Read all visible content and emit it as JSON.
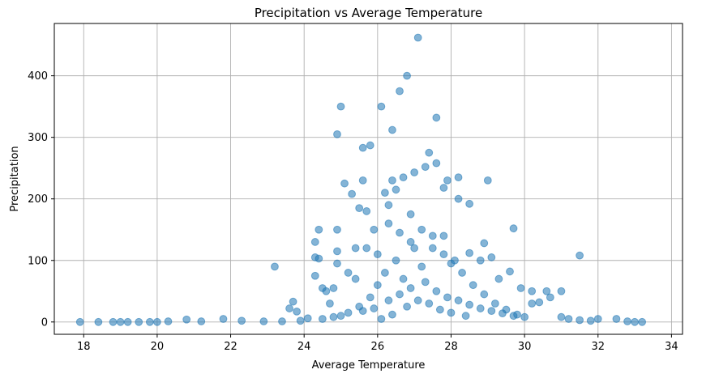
{
  "chart_data": {
    "type": "scatter",
    "title": "Precipitation vs Average Temperature",
    "xlabel": "Average Temperature",
    "ylabel": "Precipitation",
    "xlim": [
      17.2,
      34.3
    ],
    "ylim": [
      -20,
      485
    ],
    "xticks": [
      18,
      20,
      22,
      24,
      26,
      28,
      30,
      32,
      34
    ],
    "yticks": [
      0,
      100,
      200,
      300,
      400
    ],
    "grid": true,
    "marker_color": "#1f77b4",
    "marker_alpha": 0.55,
    "series": [
      {
        "points": [
          [
            17.9,
            0
          ],
          [
            18.4,
            0
          ],
          [
            18.8,
            0
          ],
          [
            19.0,
            0
          ],
          [
            19.2,
            0
          ],
          [
            19.5,
            0
          ],
          [
            19.8,
            0
          ],
          [
            20.0,
            0
          ],
          [
            20.3,
            1
          ],
          [
            20.8,
            4
          ],
          [
            21.2,
            1
          ],
          [
            21.8,
            5
          ],
          [
            22.3,
            2
          ],
          [
            22.9,
            1
          ],
          [
            23.4,
            1
          ],
          [
            23.9,
            2
          ],
          [
            23.2,
            90
          ],
          [
            23.6,
            22
          ],
          [
            23.7,
            33
          ],
          [
            23.8,
            17
          ],
          [
            24.1,
            6
          ],
          [
            24.3,
            75
          ],
          [
            24.3,
            105
          ],
          [
            24.3,
            130
          ],
          [
            24.4,
            103
          ],
          [
            24.4,
            150
          ],
          [
            24.5,
            55
          ],
          [
            24.6,
            50
          ],
          [
            24.7,
            30
          ],
          [
            24.8,
            55
          ],
          [
            24.9,
            305
          ],
          [
            24.9,
            150
          ],
          [
            24.9,
            115
          ],
          [
            24.9,
            95
          ],
          [
            25.0,
            350
          ],
          [
            25.1,
            225
          ],
          [
            25.2,
            80
          ],
          [
            25.3,
            208
          ],
          [
            25.4,
            120
          ],
          [
            25.5,
            185
          ],
          [
            25.6,
            230
          ],
          [
            25.6,
            283
          ],
          [
            25.7,
            180
          ],
          [
            25.8,
            287
          ],
          [
            25.9,
            150
          ],
          [
            26.1,
            350
          ],
          [
            26.2,
            210
          ],
          [
            26.3,
            190
          ],
          [
            26.4,
            312
          ],
          [
            26.4,
            230
          ],
          [
            26.5,
            215
          ],
          [
            26.6,
            375
          ],
          [
            26.7,
            235
          ],
          [
            26.8,
            400
          ],
          [
            26.9,
            175
          ],
          [
            27.0,
            243
          ],
          [
            27.1,
            462
          ],
          [
            27.3,
            252
          ],
          [
            27.4,
            275
          ],
          [
            27.6,
            332
          ],
          [
            27.6,
            258
          ],
          [
            27.8,
            218
          ],
          [
            27.9,
            230
          ],
          [
            28.2,
            200
          ],
          [
            28.2,
            235
          ],
          [
            28.5,
            192
          ],
          [
            29.0,
            230
          ],
          [
            29.1,
            105
          ],
          [
            29.7,
            152
          ],
          [
            30.2,
            50
          ],
          [
            30.6,
            50
          ],
          [
            31.0,
            50
          ],
          [
            31.5,
            108
          ],
          [
            28.5,
            112
          ],
          [
            28.8,
            100
          ],
          [
            28.9,
            128
          ],
          [
            29.3,
            70
          ],
          [
            29.6,
            82
          ],
          [
            29.9,
            55
          ],
          [
            30.2,
            30
          ],
          [
            30.4,
            32
          ],
          [
            30.7,
            40
          ],
          [
            31.0,
            8
          ],
          [
            31.2,
            5
          ],
          [
            31.5,
            3
          ],
          [
            31.8,
            2
          ],
          [
            32.0,
            5
          ],
          [
            32.5,
            5
          ],
          [
            32.8,
            1
          ],
          [
            33.0,
            0
          ],
          [
            33.2,
            0
          ],
          [
            25.0,
            10
          ],
          [
            25.5,
            25
          ],
          [
            25.8,
            40
          ],
          [
            26.0,
            60
          ],
          [
            26.2,
            80
          ],
          [
            26.5,
            100
          ],
          [
            26.7,
            70
          ],
          [
            27.0,
            120
          ],
          [
            27.2,
            90
          ],
          [
            27.5,
            140
          ],
          [
            27.8,
            110
          ],
          [
            28.0,
            95
          ],
          [
            28.3,
            80
          ],
          [
            28.6,
            60
          ],
          [
            28.9,
            45
          ],
          [
            29.2,
            30
          ],
          [
            29.5,
            20
          ],
          [
            29.8,
            12
          ],
          [
            24.5,
            5
          ],
          [
            24.8,
            8
          ],
          [
            25.2,
            15
          ],
          [
            25.6,
            18
          ],
          [
            25.9,
            22
          ],
          [
            26.3,
            35
          ],
          [
            26.6,
            45
          ],
          [
            26.9,
            55
          ],
          [
            27.3,
            65
          ],
          [
            27.6,
            50
          ],
          [
            27.9,
            40
          ],
          [
            28.2,
            35
          ],
          [
            28.5,
            28
          ],
          [
            28.8,
            22
          ],
          [
            29.1,
            18
          ],
          [
            29.4,
            14
          ],
          [
            29.7,
            10
          ],
          [
            30.0,
            8
          ],
          [
            26.1,
            5
          ],
          [
            26.4,
            12
          ],
          [
            26.8,
            25
          ],
          [
            27.1,
            35
          ],
          [
            27.4,
            30
          ],
          [
            27.7,
            20
          ],
          [
            28.0,
            15
          ],
          [
            28.4,
            10
          ],
          [
            26.0,
            110
          ],
          [
            26.3,
            160
          ],
          [
            26.6,
            145
          ],
          [
            26.9,
            130
          ],
          [
            27.2,
            150
          ],
          [
            27.5,
            120
          ],
          [
            27.8,
            140
          ],
          [
            28.1,
            100
          ],
          [
            25.7,
            120
          ],
          [
            25.4,
            70
          ]
        ]
      }
    ]
  }
}
